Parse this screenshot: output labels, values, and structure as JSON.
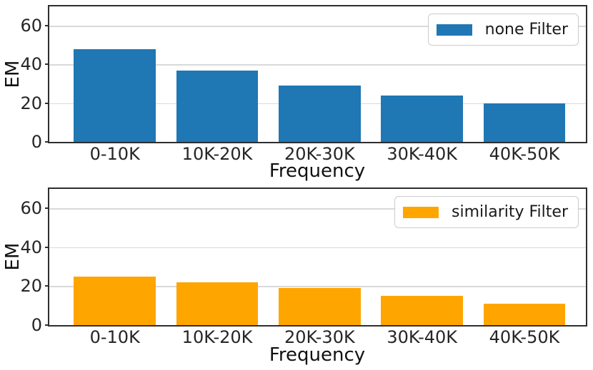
{
  "style": {
    "background": "#ffffff",
    "spine_color": "#2e2e2e",
    "grid_color": "#d9d9d9",
    "text_color": "#262626"
  },
  "chart_data": [
    {
      "type": "bar",
      "title": "",
      "categories": [
        "0-10K",
        "10K-20K",
        "20K-30K",
        "30K-40K",
        "40K-50K"
      ],
      "series": [
        {
          "name": "none Filter",
          "color": "#1f77b4",
          "values": [
            48,
            37,
            29,
            24,
            20
          ]
        }
      ],
      "xlabel": "Frequency",
      "ylabel": "EM",
      "ylim": [
        0,
        70
      ],
      "yticks": [
        0,
        20,
        40,
        60
      ],
      "xlim": [
        -0.64,
        4.6
      ],
      "bar_width": 0.8,
      "grid": true,
      "legend_position": "upper right"
    },
    {
      "type": "bar",
      "title": "",
      "categories": [
        "0-10K",
        "10K-20K",
        "20K-30K",
        "30K-40K",
        "40K-50K"
      ],
      "series": [
        {
          "name": "similarity Filter",
          "color": "#ffa500",
          "values": [
            25,
            22,
            19,
            15,
            11
          ]
        }
      ],
      "xlabel": "Frequency",
      "ylabel": "EM",
      "ylim": [
        0,
        70
      ],
      "yticks": [
        0,
        20,
        40,
        60
      ],
      "xlim": [
        -0.64,
        4.6
      ],
      "bar_width": 0.8,
      "grid": true,
      "legend_position": "upper right"
    }
  ]
}
